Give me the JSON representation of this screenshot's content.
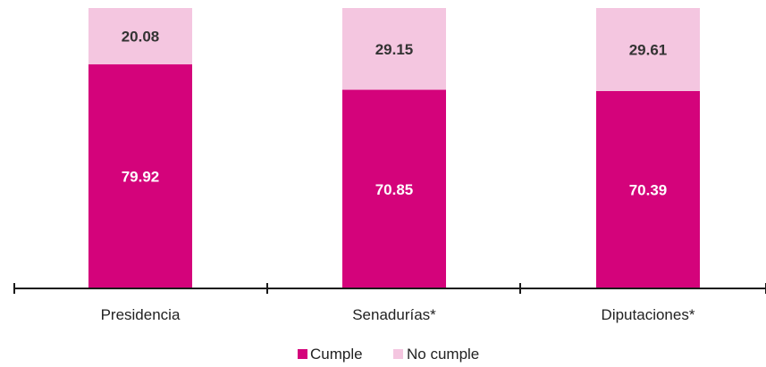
{
  "chart_data": {
    "type": "bar",
    "stacked": true,
    "categories": [
      "Presidencia",
      "Senadurías*",
      "Diputaciones*"
    ],
    "series": [
      {
        "name": "Cumple",
        "values": [
          79.92,
          70.85,
          70.39
        ],
        "color": "#d4037b",
        "label_color": "#ffffff"
      },
      {
        "name": "No cumple",
        "values": [
          20.08,
          29.15,
          29.61
        ],
        "color": "#f4c6e0",
        "label_color": "#333333"
      }
    ],
    "value_labels": {
      "Cumple": [
        "79.92",
        "70.85",
        "70.39"
      ],
      "No cumple": [
        "20.08",
        "29.15",
        "29.61"
      ]
    },
    "ylim": [
      0,
      100
    ],
    "grid": false,
    "legend_position": "bottom-center",
    "axis_color": "#1a1a1a"
  }
}
